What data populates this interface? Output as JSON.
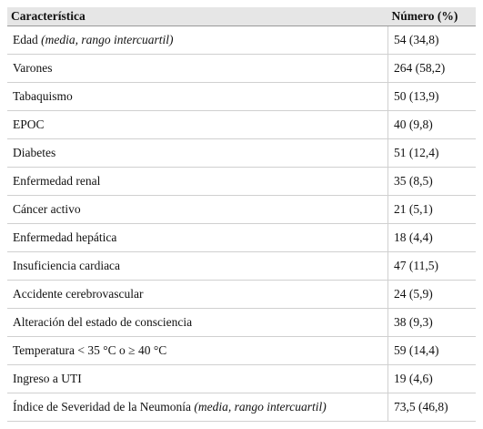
{
  "table": {
    "header": [
      "Característica",
      "Número (%)"
    ],
    "rows": [
      {
        "label": "Edad",
        "note": "(media, rango intercuartil)",
        "value": "54 (34,8)"
      },
      {
        "label": "Varones",
        "value": "264 (58,2)"
      },
      {
        "label": "Tabaquismo",
        "value": "50 (13,9)"
      },
      {
        "label": "EPOC",
        "value": "40 (9,8)"
      },
      {
        "label": "Diabetes",
        "value": "51 (12,4)"
      },
      {
        "label": "Enfermedad renal",
        "value": "35 (8,5)"
      },
      {
        "label": "Cáncer activo",
        "value": "21 (5,1)"
      },
      {
        "label": "Enfermedad hepática",
        "value": "18 (4,4)"
      },
      {
        "label": "Insuficiencia cardiaca",
        "value": "47 (11,5)"
      },
      {
        "label": "Accidente cerebrovascular",
        "value": "24 (5,9)"
      },
      {
        "label": "Alteración del estado de consciencia",
        "value": "38 (9,3)"
      },
      {
        "label": "Temperatura < 35 °C o ≥ 40 °C",
        "value": "59 (14,4)"
      },
      {
        "label": "Ingreso a UTI",
        "value": "19 (4,6)"
      },
      {
        "label": "Índice de Severidad de la Neumonía",
        "note": "(media, rango intercuartil)",
        "value": "73,5 (46,8)"
      }
    ]
  }
}
